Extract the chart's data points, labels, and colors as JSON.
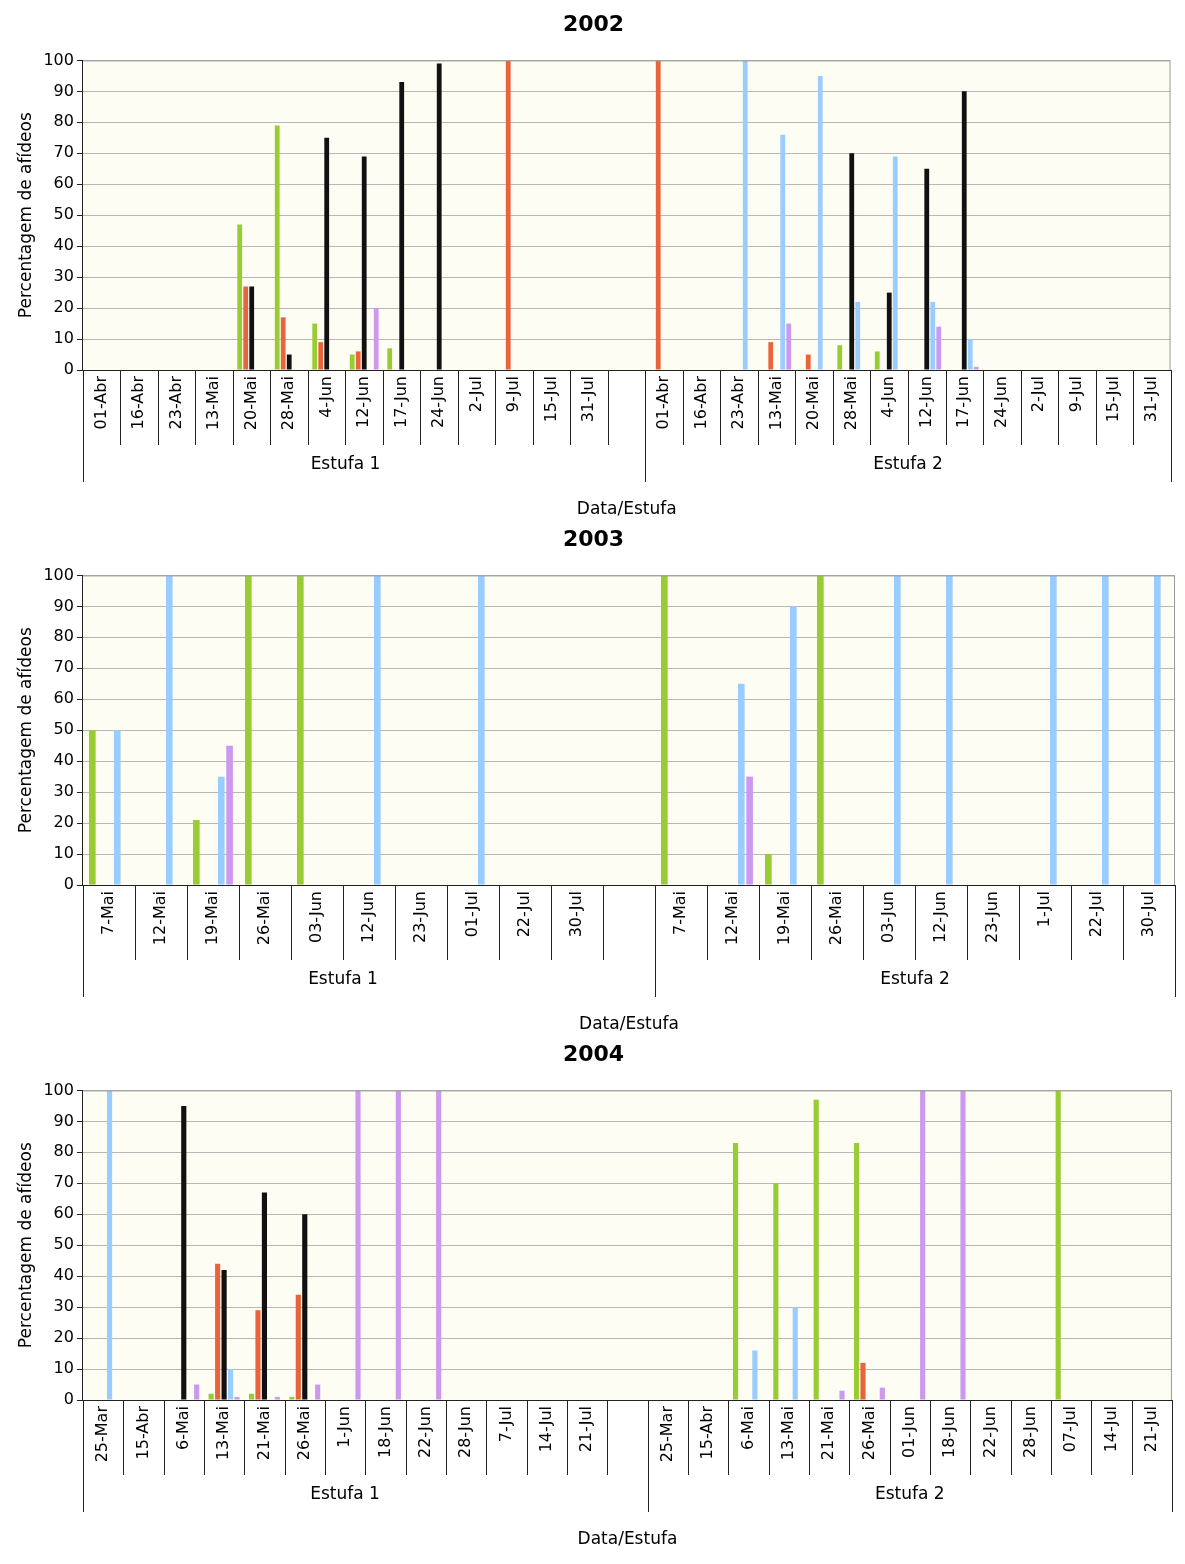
{
  "chart_data": [
    {
      "type": "bar",
      "title": "2002",
      "xlabel": "Data/Estufa",
      "ylabel": "Percentagem de afídeos",
      "annotations": [
        "Estufa 1",
        "Estufa 2"
      ],
      "categories": [
        "01-Abr",
        "16-Abr",
        "23-Abr",
        "13-Mai",
        "20-Mai",
        "28-Mai",
        "4-Jun",
        "12-Jun",
        "17-Jun",
        "24-Jun",
        "2-Jul",
        "9-Jul",
        "15-Jul",
        "31-Jul",
        null,
        "01-Abr",
        "16-Abr",
        "23-Abr",
        "13-Mai",
        "20-Mai",
        "28-Mai",
        "4-Jun",
        "12-Jun",
        "17-Jun",
        "24-Jun",
        "2-Jul",
        "9-Jul",
        "15-Jul",
        "31-Jul"
      ],
      "ylim": [
        0,
        100
      ],
      "yticks": [
        0,
        10,
        20,
        30,
        40,
        50,
        60,
        70,
        80,
        90,
        100
      ],
      "grid": "y",
      "legend": false,
      "series": [
        {
          "color": "#99cc33",
          "values": [
            0,
            0,
            0,
            0,
            47,
            79,
            15,
            5,
            7,
            0,
            0,
            0,
            0,
            0,
            null,
            0,
            0,
            0,
            0,
            0,
            8,
            6,
            0,
            0,
            0,
            0,
            0,
            0,
            0
          ]
        },
        {
          "color": "#e8643c",
          "values": [
            0,
            0,
            0,
            0,
            27,
            17,
            9,
            6,
            0,
            0,
            0,
            100,
            0,
            0,
            null,
            100,
            0,
            0,
            9,
            5,
            0,
            0,
            0,
            0,
            0,
            0,
            0,
            0,
            0
          ]
        },
        {
          "color": "#111111",
          "values": [
            0,
            0,
            0,
            0,
            27,
            5,
            75,
            69,
            93,
            99,
            0,
            0,
            0,
            0,
            null,
            0,
            0,
            0,
            0,
            0,
            70,
            25,
            65,
            90,
            0,
            0,
            0,
            0,
            0
          ]
        },
        {
          "color": "#99ccff",
          "values": [
            0,
            0,
            0,
            0,
            0,
            0,
            0,
            0,
            0,
            0,
            0,
            0,
            0,
            0,
            null,
            0,
            0,
            100,
            76,
            95,
            22,
            69,
            22,
            10,
            0,
            0,
            0,
            0,
            0
          ]
        },
        {
          "color": "#cc99ee",
          "values": [
            0,
            0,
            0,
            0,
            0,
            0,
            0,
            20,
            0,
            0,
            0,
            0,
            0,
            0,
            null,
            0,
            0,
            0,
            15,
            0,
            0,
            0,
            14,
            1,
            0,
            0,
            0,
            0,
            0
          ]
        }
      ]
    },
    {
      "type": "bar",
      "title": "2003",
      "xlabel": "Data/Estufa",
      "ylabel": "Percentagem de afídeos",
      "annotations": [
        "Estufa 1",
        "Estufa 2"
      ],
      "categories": [
        "7-Mai",
        "12-Mai",
        "19-Mai",
        "26-Mai",
        "03-Jun",
        "12-Jun",
        "23-Jun",
        "01-Jul",
        "22-Jul",
        "30-Jul",
        null,
        "7-Mai",
        "12-Mai",
        "19-Mai",
        "26-Mai",
        "03-Jun",
        "12-Jun",
        "23-Jun",
        "1-Jul",
        "22-Jul",
        "30-Jul"
      ],
      "ylim": [
        0,
        100
      ],
      "yticks": [
        0,
        10,
        20,
        30,
        40,
        50,
        60,
        70,
        80,
        90,
        100
      ],
      "grid": "y",
      "legend": false,
      "series": [
        {
          "color": "#99cc33",
          "values": [
            50,
            0,
            21,
            100,
            100,
            0,
            0,
            0,
            0,
            0,
            null,
            100,
            0,
            10,
            100,
            0,
            0,
            0,
            0,
            0,
            0
          ]
        },
        {
          "color": "#e8643c",
          "values": [
            0,
            0,
            0,
            0,
            0,
            0,
            0,
            0,
            0,
            0,
            null,
            0,
            0,
            0,
            0,
            0,
            0,
            0,
            0,
            0,
            0
          ]
        },
        {
          "color": "#111111",
          "values": [
            0,
            0,
            0,
            0,
            0,
            0,
            0,
            0,
            0,
            0,
            null,
            0,
            0,
            0,
            0,
            0,
            0,
            0,
            0,
            0,
            0
          ]
        },
        {
          "color": "#99ccff",
          "values": [
            50,
            100,
            35,
            0,
            0,
            100,
            0,
            100,
            0,
            0,
            null,
            0,
            65,
            90,
            0,
            100,
            100,
            0,
            100,
            100,
            100
          ]
        },
        {
          "color": "#cc99ee",
          "values": [
            0,
            0,
            45,
            0,
            0,
            0,
            0,
            0,
            0,
            0,
            null,
            0,
            35,
            0,
            0,
            0,
            0,
            0,
            0,
            0,
            0
          ]
        }
      ]
    },
    {
      "type": "bar",
      "title": "2004",
      "xlabel": "Data/Estufa",
      "ylabel": "Percentagem de afídeos",
      "annotations": [
        "Estufa 1",
        "Estufa 2"
      ],
      "categories": [
        "25-Mar",
        "15-Abr",
        "6-Mai",
        "13-Mai",
        "21-Mai",
        "26-Mai",
        "1-Jun",
        "18-Jun",
        "22-Jun",
        "28-Jun",
        "7-Jul",
        "14-Jul",
        "21-Jul",
        null,
        "25-Mar",
        "15-Abr",
        "6-Mai",
        "13-Mai",
        "21-Mai",
        "26-Mai",
        "01-Jun",
        "18-Jun",
        "22-Jun",
        "28-Jun",
        "07-Jul",
        "14-Jul",
        "21-Jul"
      ],
      "ylim": [
        0,
        100
      ],
      "yticks": [
        0,
        10,
        20,
        30,
        40,
        50,
        60,
        70,
        80,
        90,
        100
      ],
      "grid": "y",
      "legend": false,
      "series": [
        {
          "color": "#99cc33",
          "values": [
            0,
            0,
            0,
            2,
            2,
            1,
            0,
            0,
            0,
            0,
            0,
            0,
            0,
            null,
            0,
            0,
            83,
            70,
            97,
            83,
            0,
            0,
            0,
            0,
            100,
            0,
            0
          ]
        },
        {
          "color": "#e8643c",
          "values": [
            0,
            0,
            0,
            44,
            29,
            34,
            0,
            0,
            0,
            0,
            0,
            0,
            0,
            null,
            0,
            0,
            0,
            0,
            0,
            12,
            0,
            0,
            0,
            0,
            0,
            0,
            0
          ]
        },
        {
          "color": "#111111",
          "values": [
            0,
            0,
            95,
            42,
            67,
            60,
            0,
            0,
            0,
            0,
            0,
            0,
            0,
            null,
            0,
            0,
            0,
            0,
            0,
            0,
            0,
            0,
            0,
            0,
            0,
            0,
            0
          ]
        },
        {
          "color": "#99ccff",
          "values": [
            100,
            0,
            0,
            10,
            0,
            0,
            0,
            0,
            0,
            0,
            0,
            0,
            0,
            null,
            0,
            0,
            16,
            30,
            0,
            0,
            0,
            0,
            0,
            0,
            0,
            0,
            0
          ]
        },
        {
          "color": "#cc99ee",
          "values": [
            0,
            0,
            5,
            1,
            1,
            5,
            100,
            100,
            100,
            0,
            0,
            0,
            0,
            null,
            0,
            0,
            0,
            0,
            3,
            4,
            100,
            100,
            0,
            0,
            0,
            0,
            0
          ]
        }
      ]
    }
  ]
}
